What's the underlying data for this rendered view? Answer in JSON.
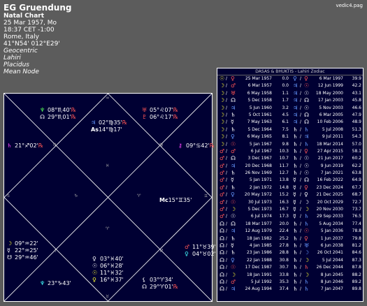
{
  "header": {
    "name": "EG Gruendung",
    "chart_type": "Natal Chart",
    "date_line": "25 Mar 1957, Mo",
    "time_line": "18:37  CET -1:00",
    "place": "Rome, Italy",
    "coords": "41°N54' 012°E29'",
    "system": "Geocentric",
    "ayanamsa": "Lahiri",
    "houses": "Placidus",
    "node": "Mean Node"
  },
  "file_name": "vedic4.pag",
  "chart": {
    "planets": [
      {
        "glyph": "♆",
        "pos": "08°♏40'",
        "retro": "℞",
        "color": "#55ff55"
      },
      {
        "glyph": "☊",
        "pos": "29°♏01'",
        "retro": "℞",
        "color": "#ffffff"
      },
      {
        "glyph": "♃",
        "pos": "02°♍35'",
        "retro": "℞",
        "color": "#6699ff"
      },
      {
        "glyph": "As",
        "pos": "14°♍17'",
        "retro": "",
        "color": "#ffffff"
      },
      {
        "glyph": "♅",
        "pos": "05°♌07'",
        "retro": "℞",
        "color": "#ff5555"
      },
      {
        "glyph": "♇",
        "pos": "06°♌17'",
        "retro": "℞",
        "color": "#ff5555"
      },
      {
        "glyph": "♄",
        "pos": "21°♐02'",
        "retro": "℞",
        "color": "#ff44ff"
      },
      {
        "glyph": "⚷",
        "pos": "09°♋42'",
        "retro": "℞",
        "color": "#ff44ff"
      },
      {
        "glyph": "Mc",
        "pos": "15°♊35'",
        "retro": "",
        "color": "#ffffff"
      },
      {
        "glyph": "☽",
        "pos": "09°♒22'",
        "retro": "",
        "color": "#ffff33"
      },
      {
        "glyph": "☿",
        "pos": "22°♒25'",
        "retro": "",
        "color": "#ffffff"
      },
      {
        "glyph": "☋",
        "pos": "29°♒46'",
        "retro": "",
        "color": "#ffffff"
      },
      {
        "glyph": "♂",
        "pos": "11°♉39'",
        "retro": "",
        "color": "#ff5555"
      },
      {
        "glyph": "♀",
        "pos": "04°♉02'",
        "retro": "",
        "color": "#44ffff"
      },
      {
        "glyph": "♀",
        "pos": "03°♓40'",
        "retro": "",
        "color": "#ffffff"
      },
      {
        "glyph": "☉",
        "pos": "06°♓28'",
        "retro": "",
        "color": "#ffffff"
      },
      {
        "glyph": "☉",
        "pos": "11°♓32'",
        "retro": "",
        "color": "#ffff33"
      },
      {
        "glyph": "♀",
        "pos": "16°♓37'",
        "retro": "",
        "color": "#ffff33"
      },
      {
        "glyph": "♆",
        "pos": "23°♑43'",
        "retro": "",
        "color": "#44ffff"
      },
      {
        "glyph": "⚸",
        "pos": "03°♈34'",
        "retro": "",
        "color": "#ffffff"
      },
      {
        "glyph": "☊",
        "pos": "29°♈01'",
        "retro": "℞",
        "color": "#ffffff"
      }
    ],
    "cusps": [
      "♏",
      "♍",
      "♌",
      "♐",
      "♋",
      "♊",
      "♒",
      "♉",
      "♓",
      "♈",
      "♑",
      "♈"
    ]
  },
  "dasas": {
    "title": "DASAS & BHUKTIS - Lahiri Zodiac",
    "rows": [
      {
        "pa": "☉",
        "pc": "#ffff33",
        "pb": "♀",
        "bc": "#ff5555",
        "d1": "25 Mar 1957",
        "a1": "0.0",
        "sb": "♀",
        "sbc": "#6699ff",
        "sub": "♀",
        "subc": "#ff5555",
        "d2": "6 Mar 1997",
        "a2": "39.9"
      },
      {
        "pa": "☽",
        "pc": "#ffff33",
        "pb": "♂",
        "bc": "#ff5555",
        "d1": "6 Mar 1957",
        "a1": "0.0",
        "sb": "♃",
        "sbc": "#6699ff",
        "sub": "☉",
        "subc": "#ff5555",
        "d2": "12 Jun 1999",
        "a2": "42.2"
      },
      {
        "pa": "☽",
        "pc": "#ffff33",
        "pb": "♅",
        "bc": "#ff5555",
        "d1": "6 May 1958",
        "a1": "1.1",
        "sb": "♃",
        "sbc": "#6699ff",
        "sub": "☉",
        "subc": "#ffffff",
        "d2": "18 May 2000",
        "a2": "43.1"
      },
      {
        "pa": "☽",
        "pc": "#ffff33",
        "pb": "☊",
        "bc": "#ffffff",
        "d1": "5 Dec 1958",
        "a1": "1.7",
        "sb": "♃",
        "sbc": "#6699ff",
        "sub": "☊",
        "subc": "#ffffff",
        "d2": "17 Jan 2003",
        "a2": "45.8"
      },
      {
        "pa": "☽",
        "pc": "#ffff33",
        "pb": "♃",
        "bc": "#6699ff",
        "d1": "5 Jun 1960",
        "a1": "3.2",
        "sb": "♃",
        "sbc": "#6699ff",
        "sub": "☉",
        "subc": "#ffffff",
        "d2": "5 Nov 2003",
        "a2": "46.6"
      },
      {
        "pa": "☽",
        "pc": "#ffff33",
        "pb": "♄",
        "bc": "#ffffff",
        "d1": "5 Oct 1961",
        "a1": "4.5",
        "sb": "♃",
        "sbc": "#6699ff",
        "sub": "☊",
        "subc": "#ffffff",
        "d2": "6 Mar 2005",
        "a2": "47.9"
      },
      {
        "pa": "☽",
        "pc": "#ffff33",
        "pb": "☿",
        "bc": "#ffffff",
        "d1": "7 May 1963",
        "a1": "6.1",
        "sb": "♃",
        "sbc": "#6699ff",
        "sub": "☊",
        "subc": "#ffffff",
        "d2": "10 Feb 2006",
        "a2": "48.9"
      },
      {
        "pa": "☽",
        "pc": "#ffff33",
        "pb": "♄",
        "bc": "#ffffff",
        "d1": "5 Dec 1964",
        "a1": "7.5",
        "sb": "♄",
        "sbc": "#ffffff",
        "sub": "♄",
        "subc": "#6699ff",
        "d2": "5 Jul 2008",
        "a2": "51.3"
      },
      {
        "pa": "☽",
        "pc": "#ffff33",
        "pb": "♀",
        "bc": "#6699ff",
        "d1": "6 May 1965",
        "a1": "8.1",
        "sb": "♄",
        "sbc": "#ffffff",
        "sub": "♃",
        "subc": "#6699ff",
        "d2": "9 Jul 2011",
        "a2": "54.3"
      },
      {
        "pa": "☽",
        "pc": "#ffff33",
        "pb": "☉",
        "bc": "#ff5555",
        "d1": "5 Jan 1967",
        "a1": "9.8",
        "sb": "♄",
        "sbc": "#ffffff",
        "sub": "♄",
        "subc": "#6699ff",
        "d2": "18 Mar 2014",
        "a2": "57.0"
      },
      {
        "pa": "♂",
        "pc": "#ff5555",
        "pb": "♂",
        "bc": "#ff5555",
        "d1": "6 Jul 1967",
        "a1": "10.3",
        "sb": "♄",
        "sbc": "#ffffff",
        "sub": "♀",
        "subc": "#ff5555",
        "d2": "27 Apr 2015",
        "a2": "58.1"
      },
      {
        "pa": "♂",
        "pc": "#ff5555",
        "pb": "☊",
        "bc": "#ffffff",
        "d1": "3 Dec 1967",
        "a1": "10.7",
        "sb": "♄",
        "sbc": "#ffffff",
        "sub": "☉",
        "subc": "#ffffff",
        "d2": "21 Jun 2017",
        "a2": "60.2"
      },
      {
        "pa": "♂",
        "pc": "#ff5555",
        "pb": "♃",
        "bc": "#6699ff",
        "d1": "20 Dec 1968",
        "a1": "11.7",
        "sb": "♄",
        "sbc": "#ffffff",
        "sub": "☉",
        "subc": "#ffffff",
        "d2": "9 Jun 2019",
        "a2": "62.2"
      },
      {
        "pa": "♂",
        "pc": "#ff5555",
        "pb": "♄",
        "bc": "#ffffff",
        "d1": "26 Nov 1969",
        "a1": "12.7",
        "sb": "♄",
        "sbc": "#ffffff",
        "sub": "☉",
        "subc": "#ffffff",
        "d2": "7 Jan 2021",
        "a2": "63.8"
      },
      {
        "pa": "♂",
        "pc": "#ff5555",
        "pb": "☿",
        "bc": "#ffffff",
        "d1": "5 Jan 1971",
        "a1": "13.8",
        "sb": "☿",
        "sbc": "#ffffff",
        "sub": "☊",
        "subc": "#ffffff",
        "d2": "16 Feb 2022",
        "a2": "64.9"
      },
      {
        "pa": "♂",
        "pc": "#ff5555",
        "pb": "♄",
        "bc": "#ffffff",
        "d1": "2 Jan 1972",
        "a1": "14.8",
        "sb": "☿",
        "sbc": "#ffffff",
        "sub": "♀",
        "subc": "#ff5555",
        "d2": "23 Dec 2024",
        "a2": "67.7"
      },
      {
        "pa": "♂",
        "pc": "#ff5555",
        "pb": "♀",
        "bc": "#6699ff",
        "d1": "20 May 1972",
        "a1": "15.2",
        "sb": "☿",
        "sbc": "#ffffff",
        "sub": "♀",
        "subc": "#ffffff",
        "d2": "21 Dec 2025",
        "a2": "68.7"
      },
      {
        "pa": "♂",
        "pc": "#ff5555",
        "pb": "☉",
        "bc": "#ff5555",
        "d1": "30 Jul 1973",
        "a1": "16.3",
        "sb": "☿",
        "sbc": "#ffffff",
        "sub": "☽",
        "subc": "#ffffff",
        "d2": "20 Oct 2029",
        "a2": "72.7"
      },
      {
        "pa": "♂",
        "pc": "#ff5555",
        "pb": "☽",
        "bc": "#ffff33",
        "d1": "5 Dec 1973",
        "a1": "16.7",
        "sb": "☿",
        "sbc": "#ffffff",
        "sub": "☽",
        "subc": "#ffff33",
        "d2": "20 Nov 2030",
        "a2": "73.7"
      },
      {
        "pa": "♂",
        "pc": "#ff5555",
        "pb": "☉",
        "bc": "#ffffff",
        "d1": "6 Jul 1974",
        "a1": "17.3",
        "sb": "☿",
        "sbc": "#ffffff",
        "sub": "♄",
        "subc": "#6699ff",
        "d2": "29 Sep 2033",
        "a2": "76.5"
      },
      {
        "pa": "☊",
        "pc": "#ffffff",
        "pb": "☊",
        "bc": "#ffffff",
        "d1": "18 Mar 1977",
        "a1": "20.0",
        "sb": "♄",
        "sbc": "#ffffff",
        "sub": "♄",
        "subc": "#6699ff",
        "d2": "5 Aug 2034",
        "a2": "77.4"
      },
      {
        "pa": "☊",
        "pc": "#ffffff",
        "pb": "♃",
        "bc": "#6699ff",
        "d1": "12 Aug 1979",
        "a1": "22.4",
        "sb": "♄",
        "sbc": "#ffffff",
        "sub": "☉",
        "subc": "#ff5555",
        "d2": "5 Jan 2036",
        "a2": "78.8"
      },
      {
        "pa": "☊",
        "pc": "#ffffff",
        "pb": "♄",
        "bc": "#ffffff",
        "d1": "18 Jan 1982",
        "a1": "25.2",
        "sb": "♄",
        "sbc": "#ffffff",
        "sub": "♀",
        "subc": "#ff5555",
        "d2": "1 Jun 2037",
        "a2": "79.8"
      },
      {
        "pa": "☊",
        "pc": "#ffffff",
        "pb": "☿",
        "bc": "#ffffff",
        "d1": "4 Jan 1985",
        "a1": "27.8",
        "sb": "♄",
        "sbc": "#ffffff",
        "sub": "♅",
        "subc": "#6699ff",
        "d2": "6 Jun 2038",
        "a2": "81.2"
      },
      {
        "pa": "☊",
        "pc": "#ffffff",
        "pb": "♄",
        "bc": "#ffffff",
        "d1": "23 Jan 1986",
        "a1": "28.8",
        "sb": "♄",
        "sbc": "#ffffff",
        "sub": "☽",
        "subc": "#6699ff",
        "d2": "26 Oct 2041",
        "a2": "84.6"
      },
      {
        "pa": "☊",
        "pc": "#ffffff",
        "pb": "♀",
        "bc": "#6699ff",
        "d1": "22 Jan 1988",
        "a1": "30.8",
        "sb": "♄",
        "sbc": "#ffffff",
        "sub": "☽",
        "subc": "#ffff33",
        "d2": "5 Jul 2044",
        "a2": "87.3"
      },
      {
        "pa": "☊",
        "pc": "#ffffff",
        "pb": "☉",
        "bc": "#ff5555",
        "d1": "17 Dec 1987",
        "a1": "30.7",
        "sb": "♄",
        "sbc": "#ffffff",
        "sub": "♄",
        "subc": "#ff5555",
        "d2": "26 Dec 2044",
        "a2": "87.8"
      },
      {
        "pa": "☊",
        "pc": "#ffffff",
        "pb": "☽",
        "bc": "#ffff33",
        "d1": "18 Jan 1991",
        "a1": "33.8",
        "sb": "♄",
        "sbc": "#ffffff",
        "sub": "☽",
        "subc": "#ffff33",
        "d2": "8 Jun 2045",
        "a2": "88.2"
      },
      {
        "pa": "☊",
        "pc": "#ffffff",
        "pb": "♂",
        "bc": "#ff5555",
        "d1": "5 Jul 1992",
        "a1": "35.3",
        "sb": "♄",
        "sbc": "#ffffff",
        "sub": "♄",
        "subc": "#6699ff",
        "d2": "8 Jun 2046",
        "a2": "89.2"
      },
      {
        "pa": "☊",
        "pc": "#ffffff",
        "pb": "♃",
        "bc": "#6699ff",
        "d1": "24 Aug 1994",
        "a1": "37.4",
        "sb": "♄",
        "sbc": "#ffffff",
        "sub": "♄",
        "subc": "#6699ff",
        "d2": "7 Jan 2047",
        "a2": "89.8"
      }
    ]
  }
}
